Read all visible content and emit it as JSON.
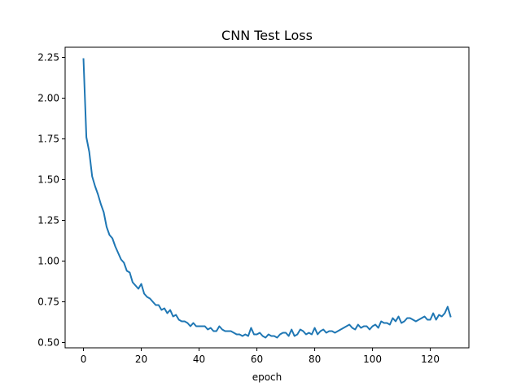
{
  "chart_data": {
    "type": "line",
    "title": "CNN Test Loss",
    "xlabel": "epoch",
    "ylabel": "",
    "xlim": [
      -6.35,
      133.35
    ],
    "ylim": [
      0.4675,
      2.3125
    ],
    "x_ticks": [
      0,
      20,
      40,
      60,
      80,
      100,
      120
    ],
    "x_tick_labels": [
      "0",
      "20",
      "40",
      "60",
      "80",
      "100",
      "120"
    ],
    "y_ticks": [
      0.5,
      0.75,
      1.0,
      1.25,
      1.5,
      1.75,
      2.0,
      2.25
    ],
    "y_tick_labels": [
      "0.50",
      "0.75",
      "1.00",
      "1.25",
      "1.50",
      "1.75",
      "2.00",
      "2.25"
    ],
    "grid": false,
    "series": [
      {
        "color": "#1f77b4",
        "x": [
          0,
          1,
          2,
          3,
          4,
          5,
          6,
          7,
          8,
          9,
          10,
          11,
          12,
          13,
          14,
          15,
          16,
          17,
          18,
          19,
          20,
          21,
          22,
          23,
          24,
          25,
          26,
          27,
          28,
          29,
          30,
          31,
          32,
          33,
          34,
          35,
          36,
          37,
          38,
          39,
          40,
          41,
          42,
          43,
          44,
          45,
          46,
          47,
          48,
          49,
          50,
          51,
          52,
          53,
          54,
          55,
          56,
          57,
          58,
          59,
          60,
          61,
          62,
          63,
          64,
          65,
          66,
          67,
          68,
          69,
          70,
          71,
          72,
          73,
          74,
          75,
          76,
          77,
          78,
          79,
          80,
          81,
          82,
          83,
          84,
          85,
          86,
          87,
          88,
          89,
          90,
          91,
          92,
          93,
          94,
          95,
          96,
          97,
          98,
          99,
          100,
          101,
          102,
          103,
          104,
          105,
          106,
          107,
          108,
          109,
          110,
          111,
          112,
          113,
          114,
          115,
          116,
          117,
          118,
          119,
          120,
          121,
          122,
          123,
          124,
          125,
          126,
          127
        ],
        "y": [
          2.24,
          1.76,
          1.67,
          1.52,
          1.46,
          1.41,
          1.35,
          1.3,
          1.21,
          1.16,
          1.14,
          1.09,
          1.05,
          1.01,
          0.99,
          0.94,
          0.93,
          0.87,
          0.85,
          0.83,
          0.86,
          0.8,
          0.78,
          0.77,
          0.75,
          0.73,
          0.73,
          0.7,
          0.71,
          0.68,
          0.7,
          0.66,
          0.67,
          0.64,
          0.63,
          0.63,
          0.62,
          0.6,
          0.62,
          0.6,
          0.6,
          0.6,
          0.6,
          0.58,
          0.59,
          0.57,
          0.57,
          0.6,
          0.58,
          0.57,
          0.57,
          0.57,
          0.56,
          0.55,
          0.55,
          0.54,
          0.55,
          0.54,
          0.59,
          0.55,
          0.55,
          0.56,
          0.54,
          0.53,
          0.55,
          0.54,
          0.54,
          0.53,
          0.55,
          0.56,
          0.56,
          0.54,
          0.58,
          0.54,
          0.55,
          0.58,
          0.57,
          0.55,
          0.56,
          0.55,
          0.59,
          0.55,
          0.57,
          0.58,
          0.56,
          0.57,
          0.57,
          0.56,
          0.57,
          0.58,
          0.59,
          0.6,
          0.61,
          0.59,
          0.58,
          0.61,
          0.59,
          0.6,
          0.6,
          0.58,
          0.6,
          0.61,
          0.59,
          0.63,
          0.62,
          0.62,
          0.61,
          0.65,
          0.63,
          0.66,
          0.62,
          0.63,
          0.65,
          0.65,
          0.64,
          0.63,
          0.64,
          0.65,
          0.66,
          0.64,
          0.64,
          0.68,
          0.64,
          0.67,
          0.66,
          0.68,
          0.72,
          0.66
        ]
      }
    ]
  }
}
